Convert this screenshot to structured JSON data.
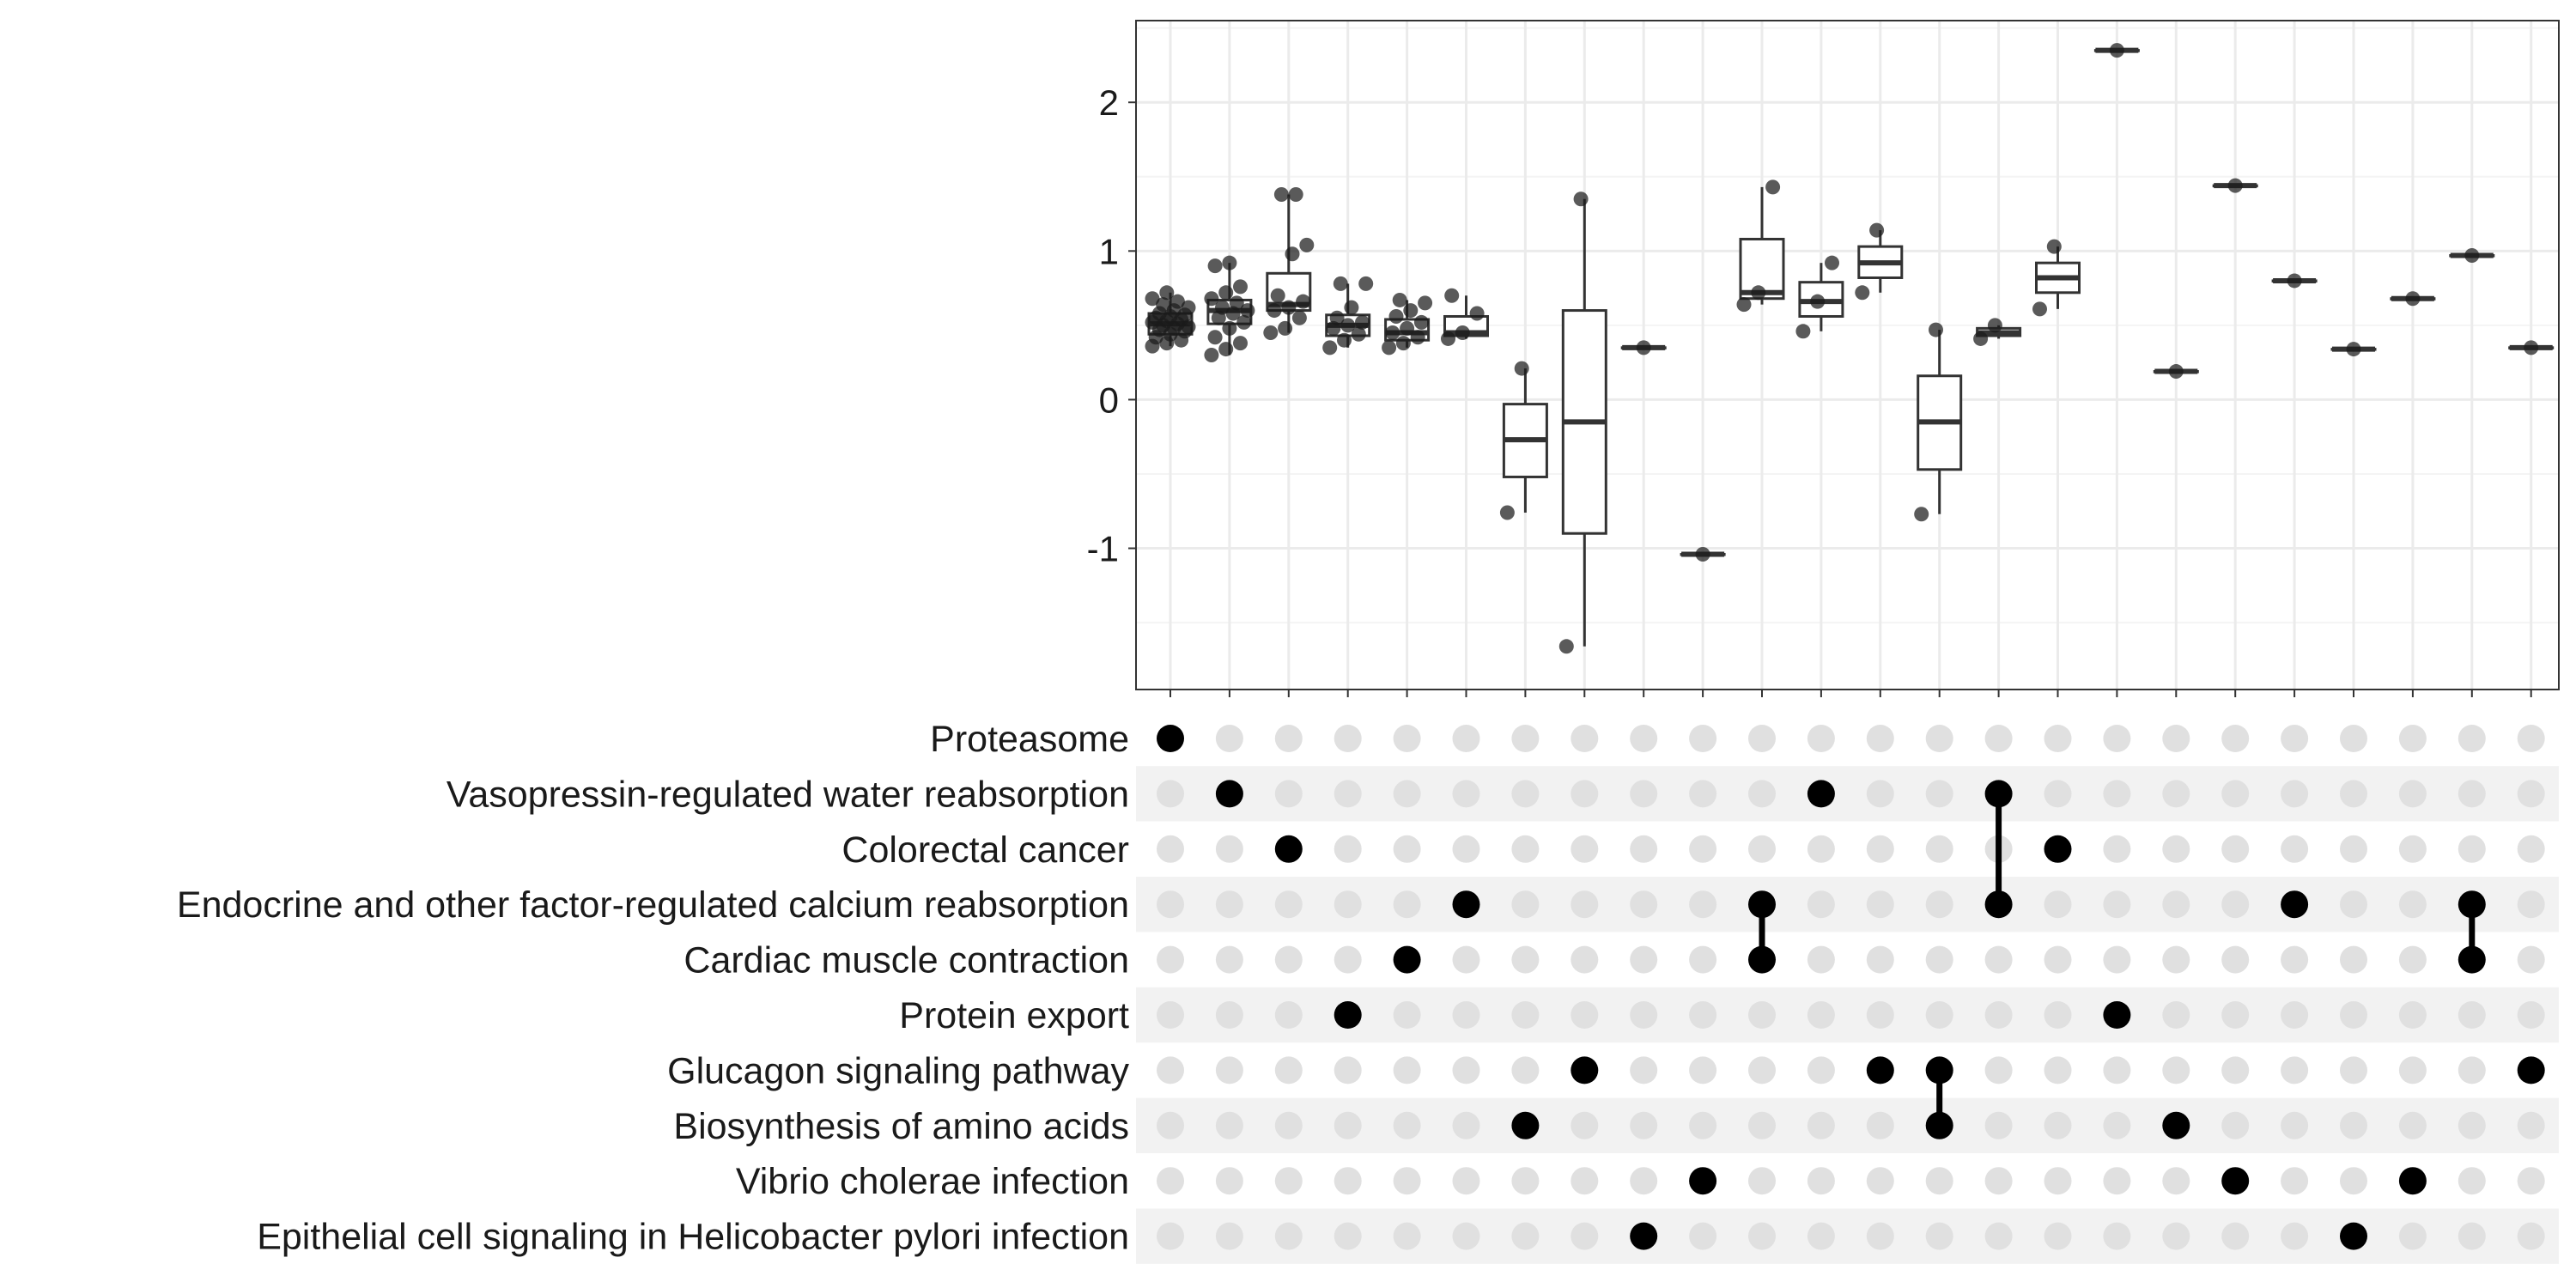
{
  "chart_data": [
    {
      "type": "boxplot",
      "title": "",
      "xlabel": "",
      "ylabel": "",
      "ylim": [
        -1.95,
        2.55
      ],
      "yticks": [
        -1,
        0,
        1,
        2
      ],
      "ytick_labels": [
        "-1",
        "0",
        "1",
        "2"
      ],
      "grid": true,
      "legend": "none",
      "colors": {
        "box_fill": "#ffffff",
        "box_line": "#333333",
        "point": "#1a1a1a",
        "grid_major": "#ebebeb",
        "grid_minor": "#f4f4f4",
        "panel_border": "#333333"
      },
      "boxes": [
        {
          "q1": 0.44,
          "median": 0.51,
          "q3": 0.58,
          "lo": 0.36,
          "hi": 0.72,
          "points": [
            0.36,
            0.38,
            0.4,
            0.42,
            0.44,
            0.46,
            0.47,
            0.48,
            0.49,
            0.5,
            0.51,
            0.52,
            0.53,
            0.54,
            0.55,
            0.56,
            0.57,
            0.58,
            0.6,
            0.62,
            0.64,
            0.66,
            0.68,
            0.72
          ]
        },
        {
          "q1": 0.51,
          "median": 0.6,
          "q3": 0.67,
          "lo": 0.3,
          "hi": 0.92,
          "points": [
            0.3,
            0.34,
            0.38,
            0.42,
            0.48,
            0.52,
            0.55,
            0.58,
            0.6,
            0.62,
            0.65,
            0.68,
            0.72,
            0.76,
            0.9,
            0.92
          ]
        },
        {
          "q1": 0.6,
          "median": 0.64,
          "q3": 0.85,
          "lo": 0.45,
          "hi": 1.38,
          "points": [
            0.45,
            0.48,
            0.55,
            0.6,
            0.62,
            0.66,
            0.7,
            0.98,
            1.04,
            1.38,
            1.38
          ]
        },
        {
          "q1": 0.43,
          "median": 0.5,
          "q3": 0.57,
          "lo": 0.35,
          "hi": 0.78,
          "points": [
            0.35,
            0.4,
            0.44,
            0.48,
            0.5,
            0.52,
            0.55,
            0.62,
            0.78,
            0.78
          ]
        },
        {
          "q1": 0.4,
          "median": 0.45,
          "q3": 0.54,
          "lo": 0.35,
          "hi": 0.67,
          "points": [
            0.35,
            0.38,
            0.42,
            0.45,
            0.48,
            0.52,
            0.56,
            0.6,
            0.65,
            0.67
          ]
        },
        {
          "q1": 0.43,
          "median": 0.45,
          "q3": 0.56,
          "lo": 0.41,
          "hi": 0.7,
          "points": [
            0.41,
            0.45,
            0.58,
            0.7
          ]
        },
        {
          "q1": -0.52,
          "median": -0.27,
          "q3": -0.03,
          "lo": -0.76,
          "hi": 0.21,
          "points": [
            -0.76,
            0.21
          ]
        },
        {
          "q1": -0.9,
          "median": -0.15,
          "q3": 0.6,
          "lo": -1.66,
          "hi": 1.35,
          "points": [
            -1.66,
            1.35
          ]
        },
        {
          "q1": 0.35,
          "median": 0.35,
          "q3": 0.35,
          "lo": 0.35,
          "hi": 0.35,
          "points": [
            0.35
          ]
        },
        {
          "q1": -1.04,
          "median": -1.04,
          "q3": -1.04,
          "lo": -1.04,
          "hi": -1.04,
          "points": [
            -1.04
          ]
        },
        {
          "q1": 0.68,
          "median": 0.72,
          "q3": 1.08,
          "lo": 0.64,
          "hi": 1.43,
          "points": [
            0.64,
            0.72,
            1.43
          ]
        },
        {
          "q1": 0.56,
          "median": 0.66,
          "q3": 0.79,
          "lo": 0.46,
          "hi": 0.92,
          "points": [
            0.46,
            0.66,
            0.92
          ]
        },
        {
          "q1": 0.82,
          "median": 0.92,
          "q3": 1.03,
          "lo": 0.72,
          "hi": 1.14,
          "points": [
            0.72,
            1.14
          ]
        },
        {
          "q1": -0.47,
          "median": -0.15,
          "q3": 0.16,
          "lo": -0.77,
          "hi": 0.47,
          "points": [
            -0.77,
            0.47
          ]
        },
        {
          "q1": 0.43,
          "median": 0.45,
          "q3": 0.48,
          "lo": 0.41,
          "hi": 0.5,
          "points": [
            0.41,
            0.5
          ]
        },
        {
          "q1": 0.72,
          "median": 0.82,
          "q3": 0.92,
          "lo": 0.61,
          "hi": 1.03,
          "points": [
            0.61,
            1.03
          ]
        },
        {
          "q1": 2.35,
          "median": 2.35,
          "q3": 2.35,
          "lo": 2.35,
          "hi": 2.35,
          "points": [
            2.35
          ]
        },
        {
          "q1": 0.19,
          "median": 0.19,
          "q3": 0.19,
          "lo": 0.19,
          "hi": 0.19,
          "points": [
            0.19
          ]
        },
        {
          "q1": 1.44,
          "median": 1.44,
          "q3": 1.44,
          "lo": 1.44,
          "hi": 1.44,
          "points": [
            1.44
          ]
        },
        {
          "q1": 0.8,
          "median": 0.8,
          "q3": 0.8,
          "lo": 0.8,
          "hi": 0.8,
          "points": [
            0.8
          ]
        },
        {
          "q1": 0.34,
          "median": 0.34,
          "q3": 0.34,
          "lo": 0.34,
          "hi": 0.34,
          "points": [
            0.34
          ]
        },
        {
          "q1": 0.68,
          "median": 0.68,
          "q3": 0.68,
          "lo": 0.68,
          "hi": 0.68,
          "points": [
            0.68
          ]
        },
        {
          "q1": 0.97,
          "median": 0.97,
          "q3": 0.97,
          "lo": 0.97,
          "hi": 0.97,
          "points": [
            0.97
          ]
        },
        {
          "q1": 0.35,
          "median": 0.35,
          "q3": 0.35,
          "lo": 0.35,
          "hi": 0.35,
          "points": [
            0.35
          ]
        }
      ]
    },
    {
      "type": "matrix",
      "title": "",
      "rows": [
        "Proteasome",
        "Vasopressin-regulated water reabsorption",
        "Colorectal cancer",
        "Endocrine and other factor-regulated calcium reabsorption",
        "Cardiac muscle contraction",
        "Protein export",
        "Glucagon signaling pathway",
        "Biosynthesis of amino acids",
        "Vibrio cholerae infection",
        "Epithelial cell signaling in Helicobacter pylori infection"
      ],
      "columns_active_rows": [
        [
          0
        ],
        [
          1
        ],
        [
          2
        ],
        [
          5
        ],
        [
          4
        ],
        [
          3
        ],
        [
          7
        ],
        [
          6
        ],
        [
          9
        ],
        [
          8
        ],
        [
          3,
          4
        ],
        [
          1
        ],
        [
          6
        ],
        [
          6,
          7
        ],
        [
          1,
          3
        ],
        [
          2
        ],
        [
          5
        ],
        [
          7
        ],
        [
          8
        ],
        [
          3
        ],
        [
          9
        ],
        [
          8
        ],
        [
          3,
          4
        ],
        [
          6
        ]
      ],
      "colors": {
        "active": "#000000",
        "inactive": "#e0e0e0",
        "stripe": "#f2f2f2"
      }
    }
  ]
}
